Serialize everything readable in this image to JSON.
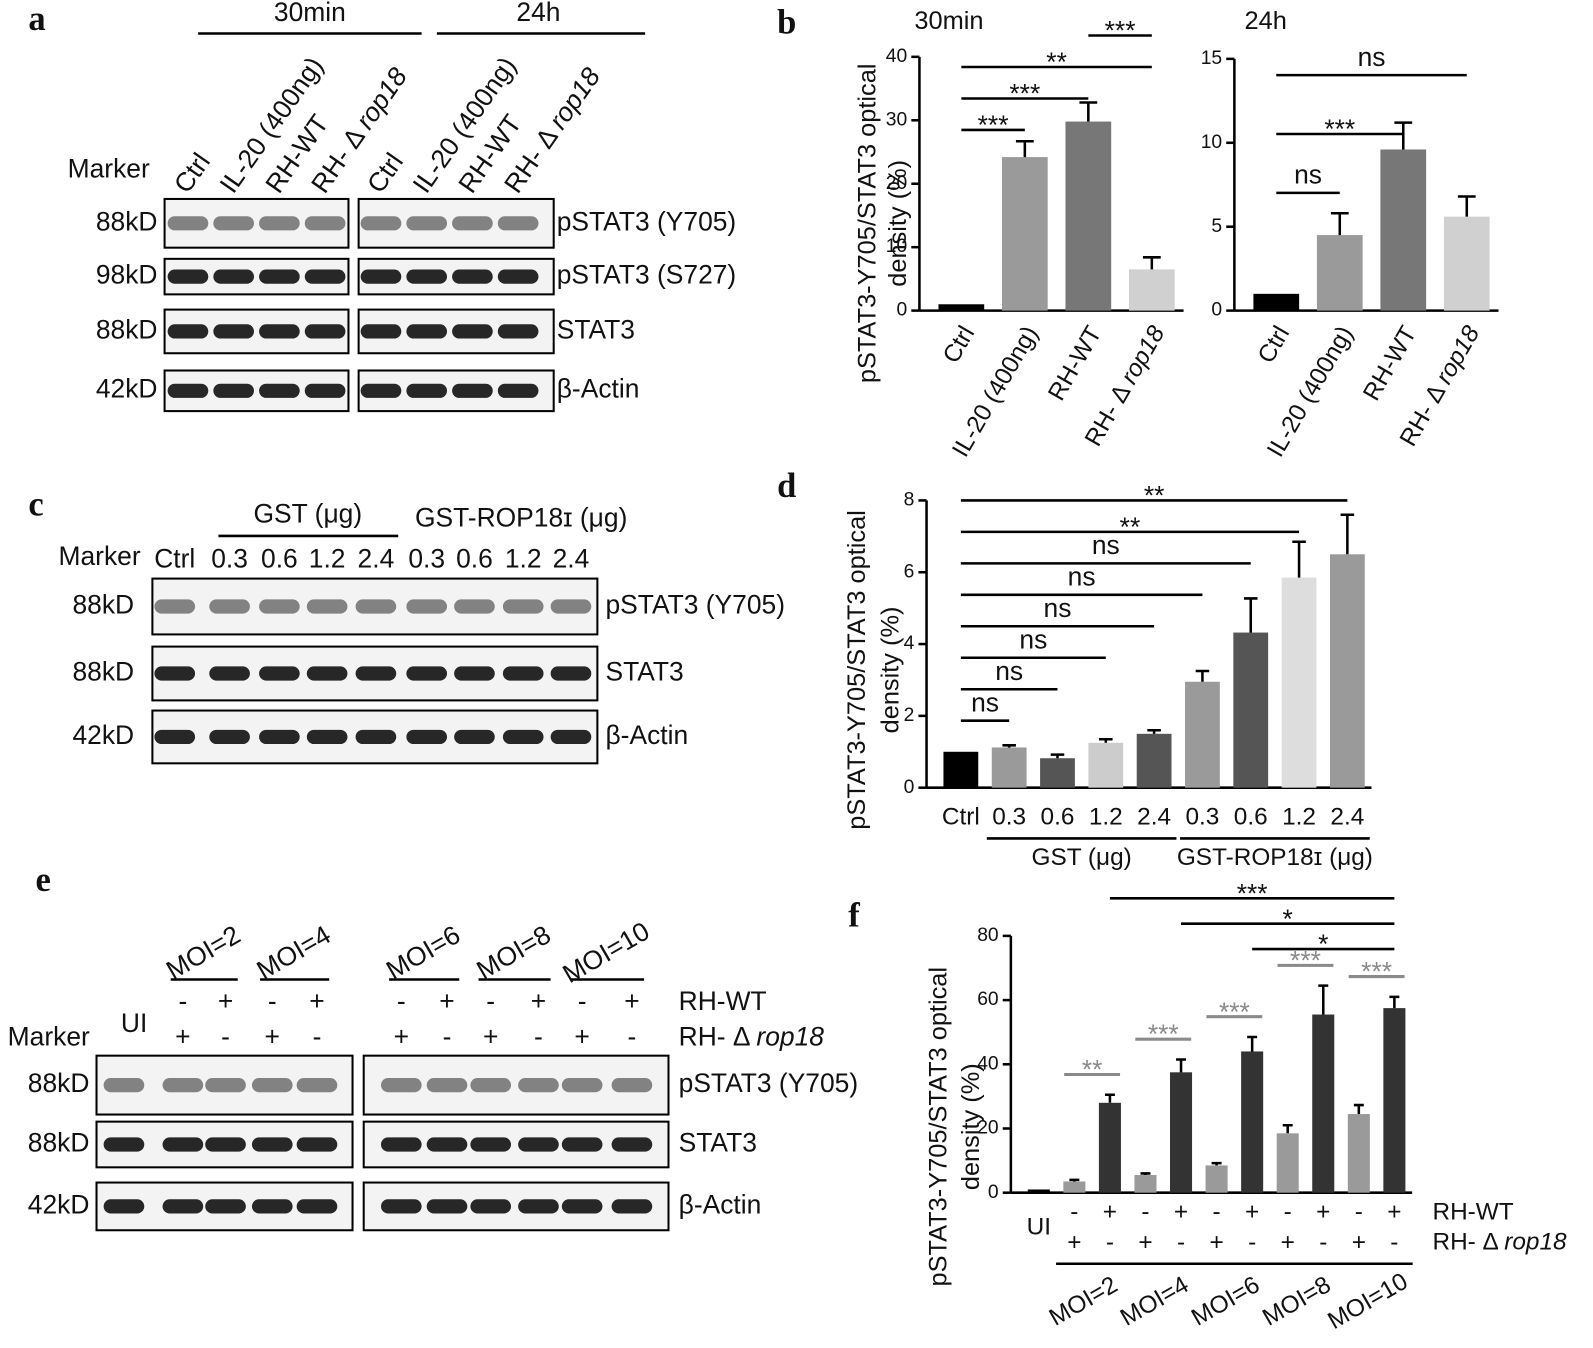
{
  "panel_labels": [
    "a",
    "b",
    "c",
    "d",
    "e",
    "f"
  ],
  "blot_a": {
    "groups": [
      "30min",
      "24h"
    ],
    "marker_title": "Marker",
    "lanes": [
      "Ctrl",
      "IL-20 (400ng)",
      "RH-WT",
      [
        "RH- Δ ",
        "rop18"
      ]
    ],
    "markers": [
      "88kD",
      "98kD",
      "88kD",
      "42kD"
    ],
    "rows": [
      "pSTAT3 (Y705)",
      "pSTAT3 (S727)",
      "STAT3",
      "β-Actin"
    ]
  },
  "blot_c": {
    "groups": [
      "GST (μg)",
      "GST-ROP18ɪ (μg)"
    ],
    "marker_title": "Marker",
    "lanes": [
      "Ctrl",
      "0.3",
      "0.6",
      "1.2",
      "2.4",
      "0.3",
      "0.6",
      "1.2",
      "2.4"
    ],
    "markers": [
      "88kD",
      "88kD",
      "42kD"
    ],
    "rows": [
      "pSTAT3 (Y705)",
      "STAT3",
      "β-Actin"
    ]
  },
  "blot_e": {
    "groups": [
      "MOI=2",
      "MOI=4",
      "MOI=6",
      "MOI=8",
      "MOI=10"
    ],
    "first_lane": "UI",
    "marker_title": "Marker",
    "row_names": [
      "RH-WT",
      [
        "RH- Δ ",
        "rop18"
      ]
    ],
    "signs": [
      [
        "-",
        "+",
        "-",
        "+",
        "-",
        "+",
        "-",
        "+",
        "-",
        "+"
      ],
      [
        "+",
        "-",
        "+",
        "-",
        "+",
        "-",
        "+",
        "-",
        "+",
        "-"
      ]
    ],
    "markers": [
      "88kD",
      "88kD",
      "42kD"
    ],
    "rows": [
      "pSTAT3 (Y705)",
      "STAT3",
      "β-Actin"
    ]
  },
  "chart_data": [
    {
      "type": "bar",
      "title": "30min",
      "y_label": [
        "pSTAT3-Y705/STAT3 optical",
        "density (%)"
      ],
      "categories": [
        "Ctrl",
        "IL-20 (400ng)",
        "RH-WT",
        [
          "RH- Δ ",
          "rop18"
        ]
      ],
      "values": [
        1,
        24.2,
        29.8,
        6.5
      ],
      "errors": [
        null,
        2.5,
        3,
        1.9
      ],
      "colors": [
        "#000000",
        "#9a9a9a",
        "#777777",
        "#d0d0d0"
      ],
      "ylim": [
        0,
        40
      ],
      "yticks": [
        0,
        10,
        20,
        30,
        40
      ],
      "annotations": [
        {
          "text": "***",
          "from": 0,
          "to": 1
        },
        {
          "text": "***",
          "from": 0,
          "to": 2
        },
        {
          "text": "**",
          "from": 0,
          "to": 3
        },
        {
          "text": "***",
          "from": 2,
          "to": 3
        }
      ]
    },
    {
      "type": "bar",
      "title": "24h",
      "categories": [
        "Ctrl",
        "IL-20 (400ng)",
        "RH-WT",
        [
          "RH- Δ ",
          "rop18"
        ]
      ],
      "values": [
        1,
        4.5,
        9.6,
        5.6
      ],
      "errors": [
        null,
        1.3,
        1.6,
        1.2
      ],
      "colors": [
        "#000000",
        "#9a9a9a",
        "#777777",
        "#d0d0d0"
      ],
      "ylim": [
        0,
        15
      ],
      "yticks": [
        0,
        5,
        10,
        15
      ],
      "annotations": [
        {
          "text": "ns",
          "from": 0,
          "to": 1
        },
        {
          "text": "***",
          "from": 0,
          "to": 2
        },
        {
          "text": "ns",
          "from": 0,
          "to": 3
        }
      ]
    },
    {
      "type": "bar",
      "y_label": [
        "pSTAT3-Y705/STAT3 optical",
        "density (%)"
      ],
      "categories": [
        "Ctrl",
        "0.3",
        "0.6",
        "1.2",
        "2.4",
        "0.3",
        "0.6",
        "1.2",
        "2.4"
      ],
      "values": [
        1,
        1.12,
        0.82,
        1.25,
        1.5,
        2.95,
        4.32,
        5.85,
        6.5
      ],
      "errors": [
        null,
        0.06,
        0.1,
        0.1,
        0.1,
        0.3,
        0.95,
        1.0,
        1.1
      ],
      "colors": [
        "#000000",
        "#9a9a9a",
        "#555555",
        "#cccccc",
        "#555555",
        "#9a9a9a",
        "#555555",
        "#dddddd",
        "#9a9a9a"
      ],
      "ylim": [
        0,
        8
      ],
      "yticks": [
        0,
        2,
        4,
        6,
        8
      ],
      "groups": [
        {
          "label": "GST (μg)",
          "from": 1,
          "to": 4
        },
        {
          "label": "GST-ROP18ɪ (μg)",
          "from": 5,
          "to": 8
        }
      ],
      "annotations": [
        {
          "text": "ns",
          "from": 0,
          "to": 1
        },
        {
          "text": "ns",
          "from": 0,
          "to": 2
        },
        {
          "text": "ns",
          "from": 0,
          "to": 3
        },
        {
          "text": "ns",
          "from": 0,
          "to": 4
        },
        {
          "text": "ns",
          "from": 0,
          "to": 5
        },
        {
          "text": "ns",
          "from": 0,
          "to": 6
        },
        {
          "text": "**",
          "from": 0,
          "to": 7
        },
        {
          "text": "**",
          "from": 0,
          "to": 8
        }
      ]
    },
    {
      "type": "bar",
      "y_label": [
        "pSTAT3-Y705/STAT3 optical",
        "density (%)"
      ],
      "categories": [
        "UI",
        null,
        null,
        null,
        null,
        null,
        null,
        null,
        null,
        null,
        null
      ],
      "values": [
        1,
        3.5,
        28,
        5.5,
        37.5,
        8.5,
        44,
        18.5,
        55.5,
        24.5,
        57.5
      ],
      "errors": [
        null,
        0.5,
        2.5,
        0.5,
        4,
        0.7,
        4.5,
        2.5,
        9,
        2.8,
        3.5
      ],
      "colors": [
        "#000000",
        "#9a9a9a",
        "#333333",
        "#9a9a9a",
        "#333333",
        "#9a9a9a",
        "#333333",
        "#9a9a9a",
        "#333333",
        "#9a9a9a",
        "#333333"
      ],
      "ylim": [
        0,
        80
      ],
      "yticks": [
        0,
        20,
        40,
        60,
        80
      ],
      "x_rows": {
        "names": [
          "RH-WT",
          [
            "RH- Δ ",
            "rop18"
          ]
        ],
        "signs": [
          [
            "-",
            "+",
            "-",
            "+",
            "-",
            "+",
            "-",
            "+",
            "-",
            "+"
          ],
          [
            "+",
            "-",
            "+",
            "-",
            "+",
            "-",
            "+",
            "-",
            "+",
            "-"
          ]
        ]
      },
      "groups": [
        "MOI=2",
        "MOI=4",
        "MOI=6",
        "MOI=8",
        "MOI=10"
      ],
      "pair_annotations": [
        "**",
        "***",
        "***",
        "***",
        "***"
      ],
      "pair_annotation_color": "#8a8a8a",
      "annotations": [
        {
          "text": "*",
          "from": 6,
          "to": 10
        },
        {
          "text": "*",
          "from": 4,
          "to": 10
        },
        {
          "text": "***",
          "from": 2,
          "to": 10
        }
      ]
    }
  ]
}
